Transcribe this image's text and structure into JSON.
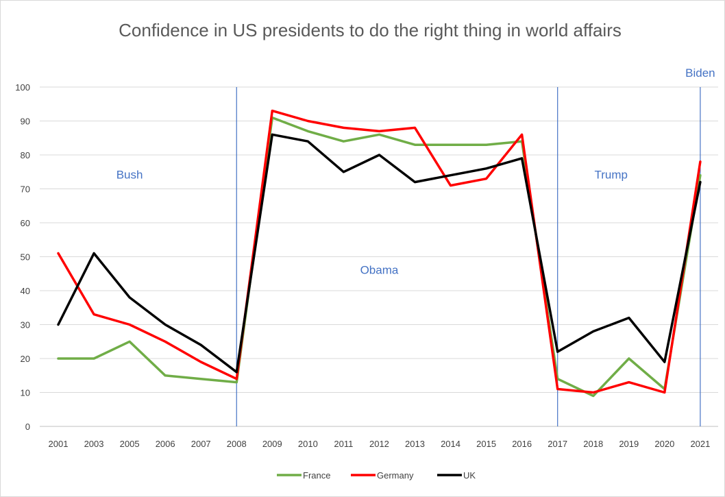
{
  "chart_data": {
    "type": "line",
    "title": "Confidence  in US presidents to do the right thing in world affairs",
    "xlabel": "",
    "ylabel": "",
    "ylim": [
      0,
      100
    ],
    "yticks": [
      0,
      10,
      20,
      30,
      40,
      50,
      60,
      70,
      80,
      90,
      100
    ],
    "grid": true,
    "legend_position": "bottom",
    "categories": [
      "2001",
      "2003",
      "2005",
      "2006",
      "2007",
      "2008",
      "2009",
      "2010",
      "2011",
      "2012",
      "2013",
      "2014",
      "2015",
      "2016",
      "2017",
      "2018",
      "2019",
      "2020",
      "2021"
    ],
    "series": [
      {
        "name": "France",
        "color": "#70ad47",
        "values": [
          20,
          20,
          25,
          15,
          14,
          13,
          91,
          87,
          84,
          86,
          83,
          83,
          83,
          84,
          14,
          9,
          20,
          11,
          74
        ]
      },
      {
        "name": "Germany",
        "color": "#ff0000",
        "values": [
          51,
          33,
          30,
          25,
          19,
          14,
          93,
          90,
          88,
          87,
          88,
          71,
          73,
          86,
          11,
          10,
          13,
          10,
          78
        ]
      },
      {
        "name": "UK",
        "color": "#000000",
        "values": [
          30,
          51,
          38,
          30,
          24,
          16,
          86,
          84,
          75,
          80,
          72,
          74,
          76,
          79,
          22,
          28,
          32,
          19,
          72
        ]
      }
    ],
    "era_divider_years": [
      "2008",
      "2017",
      "2021"
    ],
    "era_labels": [
      {
        "text": "Bush",
        "year": "2005",
        "value": 73
      },
      {
        "text": "Obama",
        "year": "2012",
        "value": 45
      },
      {
        "text": "Trump",
        "year": "2018.5",
        "value": 73
      },
      {
        "text": "Biden",
        "year": "2021",
        "value": 103
      }
    ],
    "divider_color": "#4472c4"
  }
}
